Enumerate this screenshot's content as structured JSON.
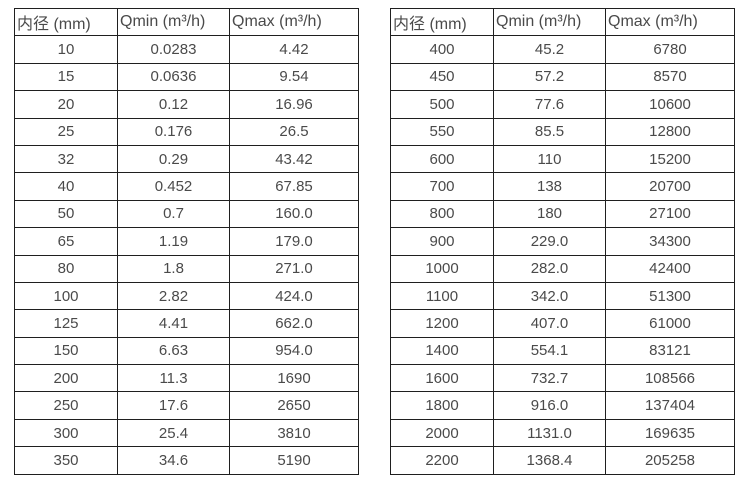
{
  "colors": {
    "background": "#ffffff",
    "text": "#4a4a4a",
    "border": "#1f1f1f"
  },
  "tables": [
    {
      "id": "flow-table-small-diameters",
      "headers": [
        "内径 (mm)",
        "Qmin (m³/h)",
        "Qmax (m³/h)"
      ],
      "rows": [
        [
          "10",
          "0.0283",
          "4.42"
        ],
        [
          "15",
          "0.0636",
          "9.54"
        ],
        [
          "20",
          "0.12",
          "16.96"
        ],
        [
          "25",
          "0.176",
          "26.5"
        ],
        [
          "32",
          "0.29",
          "43.42"
        ],
        [
          "40",
          "0.452",
          "67.85"
        ],
        [
          "50",
          "0.7",
          "160.0"
        ],
        [
          "65",
          "1.19",
          "179.0"
        ],
        [
          "80",
          "1.8",
          "271.0"
        ],
        [
          "100",
          "2.82",
          "424.0"
        ],
        [
          "125",
          "4.41",
          "662.0"
        ],
        [
          "150",
          "6.63",
          "954.0"
        ],
        [
          "200",
          "11.3",
          "1690"
        ],
        [
          "250",
          "17.6",
          "2650"
        ],
        [
          "300",
          "25.4",
          "3810"
        ],
        [
          "350",
          "34.6",
          "5190"
        ]
      ]
    },
    {
      "id": "flow-table-large-diameters",
      "headers": [
        "内径 (mm)",
        "Qmin (m³/h)",
        "Qmax (m³/h)"
      ],
      "rows": [
        [
          "400",
          "45.2",
          "6780"
        ],
        [
          "450",
          "57.2",
          "8570"
        ],
        [
          "500",
          "77.6",
          "10600"
        ],
        [
          "550",
          "85.5",
          "12800"
        ],
        [
          "600",
          "110",
          "15200"
        ],
        [
          "700",
          "138",
          "20700"
        ],
        [
          "800",
          "180",
          "27100"
        ],
        [
          "900",
          "229.0",
          "34300"
        ],
        [
          "1000",
          "282.0",
          "42400"
        ],
        [
          "1100",
          "342.0",
          "51300"
        ],
        [
          "1200",
          "407.0",
          "61000"
        ],
        [
          "1400",
          "554.1",
          "83121"
        ],
        [
          "1600",
          "732.7",
          "108566"
        ],
        [
          "1800",
          "916.0",
          "137404"
        ],
        [
          "2000",
          "1131.0",
          "169635"
        ],
        [
          "2200",
          "1368.4",
          "205258"
        ]
      ]
    }
  ]
}
